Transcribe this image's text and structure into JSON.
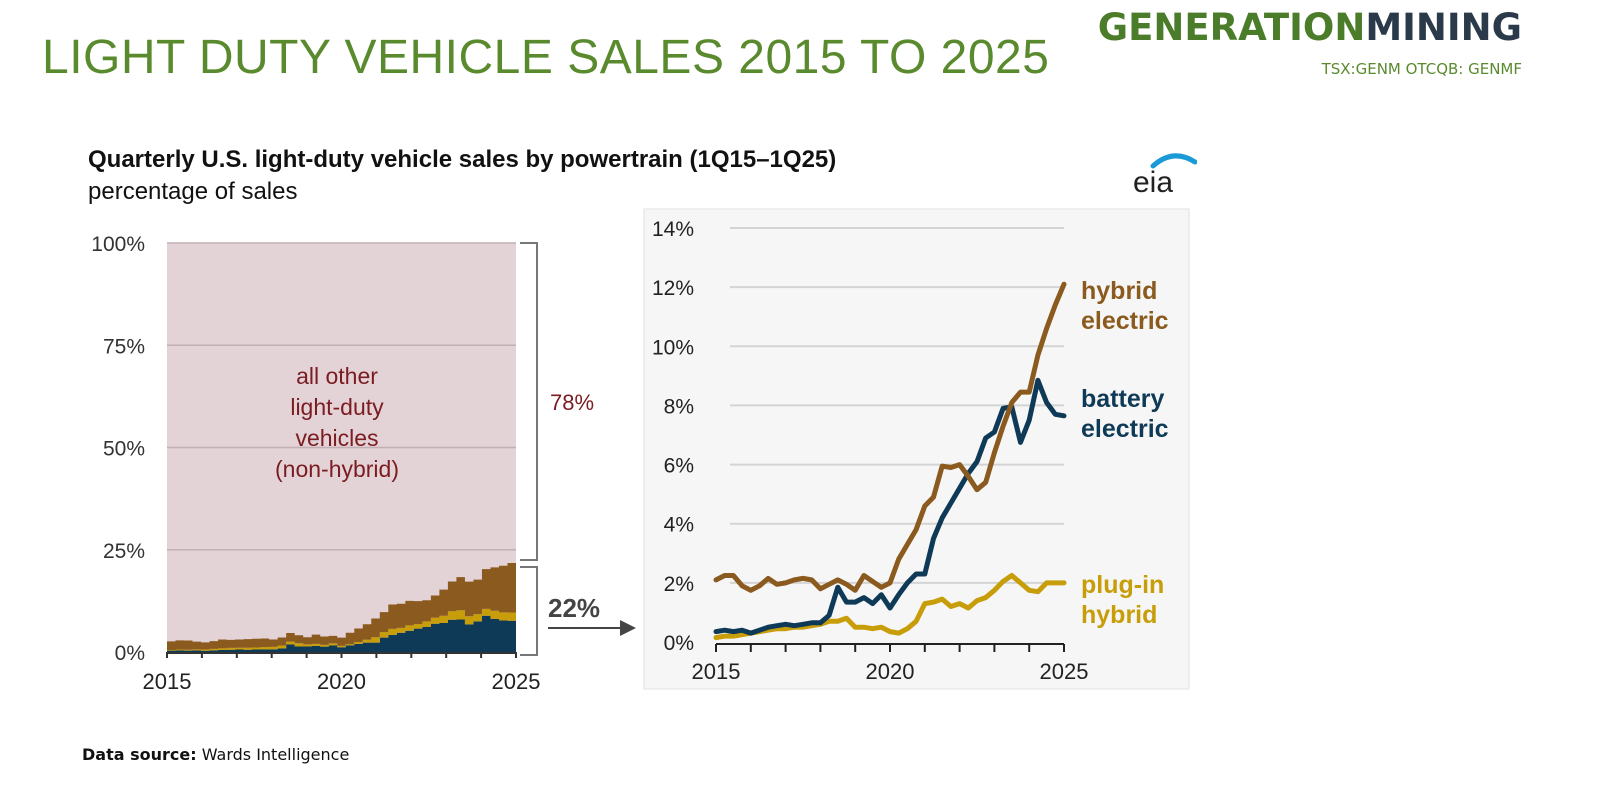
{
  "header": {
    "title": "LIGHT DUTY VEHICLE SALES 2015 TO 2025",
    "brand_part1": "GENERATION",
    "brand_part2": "MINING",
    "ticker": "TSX:GENM OTCQB: GENMF"
  },
  "figure": {
    "title": "Quarterly U.S. light-duty vehicle sales by powertrain (1Q15–1Q25)",
    "subtitle": "percentage of sales",
    "logo_text": "eia"
  },
  "footer": {
    "source_label": "Data source:",
    "source_value": "Wards Intelligence"
  },
  "colors": {
    "title_green": "#5a8a2e",
    "hybrid": "#8b5a1e",
    "battery": "#0e3a57",
    "plugin": "#c89d0a",
    "other": "#e3d3d6",
    "other_text": "#7a1c22"
  },
  "chart_data": [
    {
      "type": "area",
      "stacked": true,
      "title": "Quarterly U.S. light-duty vehicle sales by powertrain (1Q15–1Q25)",
      "ylabel": "percentage of sales",
      "xlabel": "",
      "x_start": "1Q15",
      "x_end": "1Q25",
      "xticks": [
        "2015",
        "2020",
        "2025"
      ],
      "yticks": [
        "0%",
        "25%",
        "50%",
        "75%",
        "100%"
      ],
      "ylim": [
        0,
        100
      ],
      "grid": true,
      "series_order": [
        "battery electric",
        "plug-in hybrid",
        "hybrid electric",
        "all other light-duty vehicles (non-hybrid)"
      ],
      "other_label": [
        "all other",
        "light-duty",
        "vehicles",
        "(non-hybrid)"
      ],
      "annotations": [
        {
          "text": "78%",
          "refers_to": "all other light-duty vehicles (non-hybrid)"
        },
        {
          "text": "22%",
          "refers_to": "hybrid + plug-in hybrid + battery electric"
        }
      ]
    },
    {
      "type": "line",
      "title": "",
      "xlabel": "",
      "ylabel": "",
      "xticks": [
        "2015",
        "2020",
        "2025"
      ],
      "yticks": [
        "0%",
        "2%",
        "4%",
        "6%",
        "8%",
        "10%",
        "12%",
        "14%"
      ],
      "ylim": [
        0,
        14
      ],
      "xlim": [
        2015,
        2025
      ],
      "grid": true,
      "legend": "right, inline labels",
      "x": [
        2015.0,
        2015.25,
        2015.5,
        2015.75,
        2016.0,
        2016.25,
        2016.5,
        2016.75,
        2017.0,
        2017.25,
        2017.5,
        2017.75,
        2018.0,
        2018.25,
        2018.5,
        2018.75,
        2019.0,
        2019.25,
        2019.5,
        2019.75,
        2020.0,
        2020.25,
        2020.5,
        2020.75,
        2021.0,
        2021.25,
        2021.5,
        2021.75,
        2022.0,
        2022.25,
        2022.5,
        2022.75,
        2023.0,
        2023.25,
        2023.5,
        2023.75,
        2024.0,
        2024.25,
        2024.5,
        2024.75,
        2025.0
      ],
      "series": [
        {
          "name": "hybrid electric",
          "label": [
            "hybrid",
            "electric"
          ],
          "color": "#8b5a1e",
          "values": [
            2.1,
            2.25,
            2.25,
            1.9,
            1.75,
            1.9,
            2.15,
            1.95,
            2.0,
            2.1,
            2.15,
            2.1,
            1.8,
            1.95,
            2.1,
            1.95,
            1.75,
            2.25,
            2.05,
            1.85,
            2.0,
            2.8,
            3.3,
            3.8,
            4.6,
            4.9,
            5.95,
            5.9,
            6.0,
            5.6,
            5.15,
            5.4,
            6.4,
            7.3,
            8.1,
            8.45,
            8.45,
            9.7,
            10.6,
            11.4,
            12.1
          ]
        },
        {
          "name": "battery electric",
          "label": [
            "battery",
            "electric"
          ],
          "color": "#0e3a57",
          "values": [
            0.35,
            0.4,
            0.35,
            0.4,
            0.3,
            0.4,
            0.5,
            0.55,
            0.6,
            0.55,
            0.6,
            0.65,
            0.65,
            0.9,
            1.85,
            1.35,
            1.35,
            1.5,
            1.3,
            1.6,
            1.15,
            1.6,
            2.0,
            2.3,
            2.3,
            3.5,
            4.2,
            4.7,
            5.2,
            5.7,
            6.1,
            6.9,
            7.1,
            7.9,
            7.95,
            6.75,
            7.5,
            8.85,
            8.1,
            7.7,
            7.65
          ]
        },
        {
          "name": "plug-in hybrid",
          "label": [
            "plug-in",
            "hybrid"
          ],
          "color": "#c89d0a",
          "values": [
            0.15,
            0.2,
            0.2,
            0.25,
            0.3,
            0.35,
            0.4,
            0.45,
            0.45,
            0.5,
            0.5,
            0.55,
            0.6,
            0.7,
            0.7,
            0.8,
            0.5,
            0.5,
            0.45,
            0.5,
            0.35,
            0.3,
            0.45,
            0.7,
            1.3,
            1.35,
            1.45,
            1.2,
            1.3,
            1.15,
            1.4,
            1.5,
            1.75,
            2.05,
            2.25,
            2.0,
            1.75,
            1.7,
            2.0,
            2.0,
            2.0
          ]
        }
      ]
    }
  ]
}
